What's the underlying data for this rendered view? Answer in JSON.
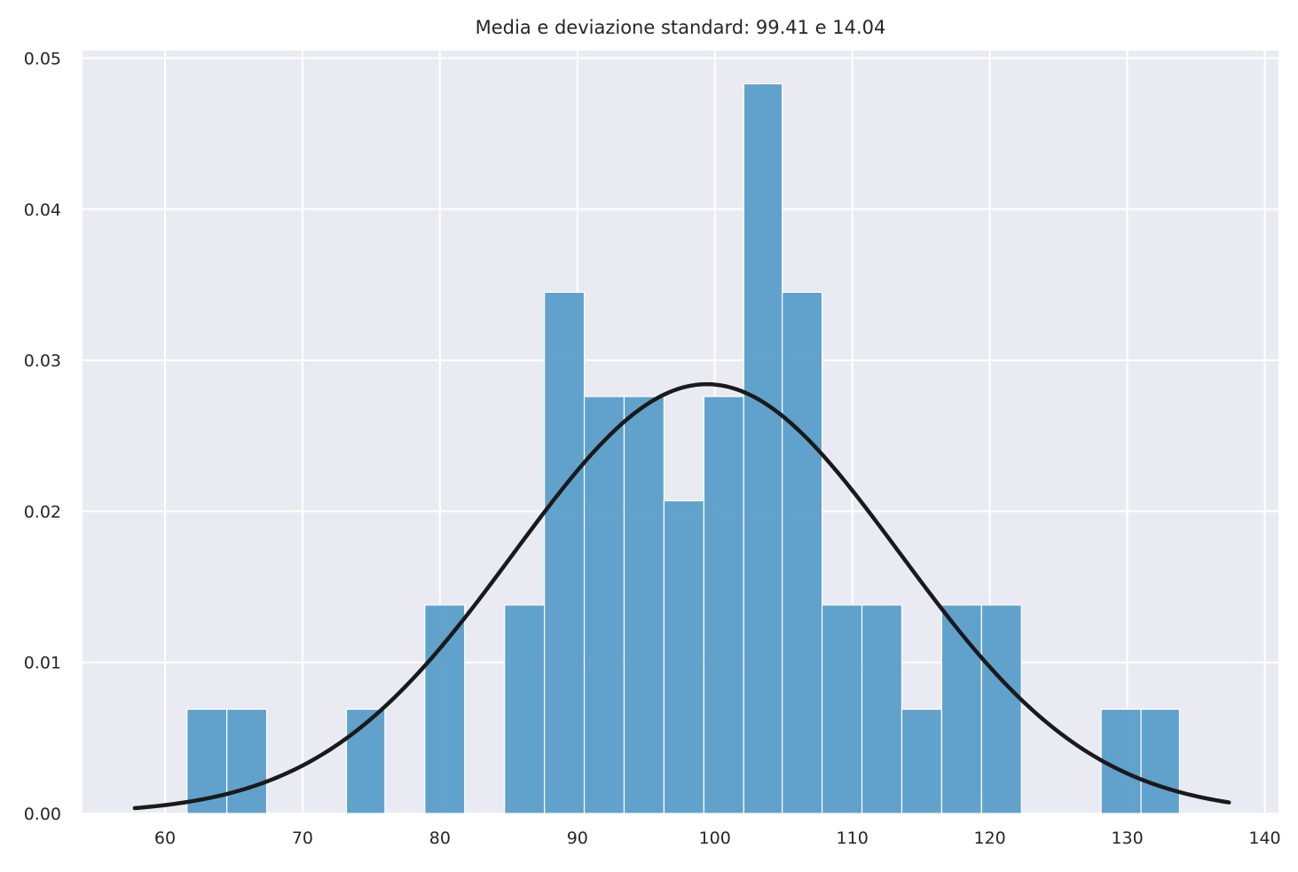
{
  "chart_data": {
    "type": "bar",
    "title": "Media e deviazione standard: 99.41 e 14.04",
    "xlabel": "",
    "ylabel": "",
    "xlim": [
      54,
      141
    ],
    "ylim": [
      0,
      0.0505
    ],
    "x_ticks": [
      60,
      70,
      80,
      90,
      100,
      110,
      120,
      130,
      140
    ],
    "y_ticks": [
      0.0,
      0.01,
      0.02,
      0.03,
      0.04,
      0.05
    ],
    "x_tick_labels": [
      "60",
      "70",
      "80",
      "90",
      "100",
      "110",
      "120",
      "130",
      "140"
    ],
    "y_tick_labels": [
      "0.00",
      "0.01",
      "0.02",
      "0.03",
      "0.04",
      "0.05"
    ],
    "grid": true,
    "bins": [
      {
        "x0": 61.6,
        "x1": 64.5,
        "density": 0.0069
      },
      {
        "x0": 64.5,
        "x1": 67.4,
        "density": 0.0069
      },
      {
        "x0": 67.4,
        "x1": 70.3,
        "density": 0.0
      },
      {
        "x0": 70.3,
        "x1": 73.2,
        "density": 0.0
      },
      {
        "x0": 73.2,
        "x1": 76.0,
        "density": 0.0069
      },
      {
        "x0": 76.0,
        "x1": 78.9,
        "density": 0.0
      },
      {
        "x0": 78.9,
        "x1": 81.8,
        "density": 0.0138
      },
      {
        "x0": 81.8,
        "x1": 84.7,
        "density": 0.0
      },
      {
        "x0": 84.7,
        "x1": 87.6,
        "density": 0.0138
      },
      {
        "x0": 87.6,
        "x1": 90.5,
        "density": 0.0345
      },
      {
        "x0": 90.5,
        "x1": 93.4,
        "density": 0.0276
      },
      {
        "x0": 93.4,
        "x1": 96.3,
        "density": 0.0276
      },
      {
        "x0": 96.3,
        "x1": 99.2,
        "density": 0.0207
      },
      {
        "x0": 99.2,
        "x1": 102.1,
        "density": 0.0276
      },
      {
        "x0": 102.1,
        "x1": 104.9,
        "density": 0.0483
      },
      {
        "x0": 104.9,
        "x1": 107.8,
        "density": 0.0345
      },
      {
        "x0": 107.8,
        "x1": 110.7,
        "density": 0.0138
      },
      {
        "x0": 110.7,
        "x1": 113.6,
        "density": 0.0138
      },
      {
        "x0": 113.6,
        "x1": 116.5,
        "density": 0.0069
      },
      {
        "x0": 116.5,
        "x1": 119.4,
        "density": 0.0138
      },
      {
        "x0": 119.4,
        "x1": 122.3,
        "density": 0.0138
      },
      {
        "x0": 122.3,
        "x1": 125.2,
        "density": 0.0
      },
      {
        "x0": 125.2,
        "x1": 128.1,
        "density": 0.0
      },
      {
        "x0": 128.1,
        "x1": 131.0,
        "density": 0.0069
      },
      {
        "x0": 131.0,
        "x1": 133.8,
        "density": 0.0069
      }
    ],
    "normal_curve": {
      "mean": 99.41,
      "std": 14.04,
      "x_range": [
        57.8,
        137.4
      ]
    },
    "colors": {
      "bar": "#5a9ec9",
      "curve": "#1a1a1a",
      "grid": "#ffffff",
      "background": "#eaeaf2"
    }
  }
}
